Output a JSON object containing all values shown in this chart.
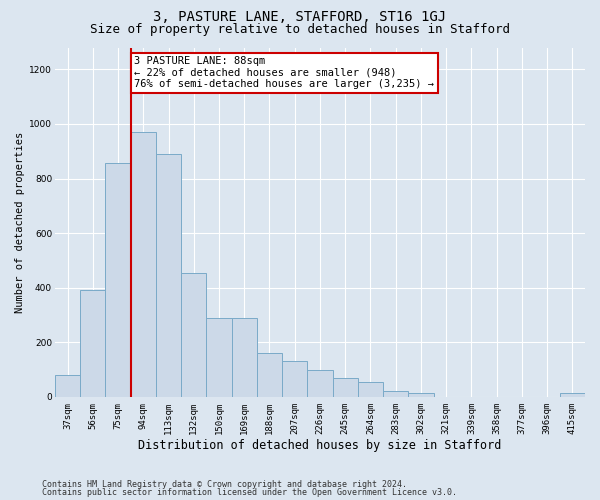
{
  "title": "3, PASTURE LANE, STAFFORD, ST16 1GJ",
  "subtitle": "Size of property relative to detached houses in Stafford",
  "xlabel": "Distribution of detached houses by size in Stafford",
  "ylabel": "Number of detached properties",
  "categories": [
    "37sqm",
    "56sqm",
    "75sqm",
    "94sqm",
    "113sqm",
    "132sqm",
    "150sqm",
    "169sqm",
    "188sqm",
    "207sqm",
    "226sqm",
    "245sqm",
    "264sqm",
    "283sqm",
    "302sqm",
    "321sqm",
    "339sqm",
    "358sqm",
    "377sqm",
    "396sqm",
    "415sqm"
  ],
  "values": [
    80,
    390,
    855,
    970,
    890,
    455,
    290,
    290,
    160,
    130,
    100,
    70,
    55,
    20,
    15,
    0,
    0,
    0,
    0,
    0,
    15
  ],
  "bar_color": "#ccd9e8",
  "bar_edge_color": "#7aaac8",
  "vline_x": 2.5,
  "vline_color": "#cc0000",
  "annotation_text": "3 PASTURE LANE: 88sqm\n← 22% of detached houses are smaller (948)\n76% of semi-detached houses are larger (3,235) →",
  "annotation_box_color": "#ffffff",
  "annotation_box_edge": "#cc0000",
  "ylim": [
    0,
    1280
  ],
  "yticks": [
    0,
    200,
    400,
    600,
    800,
    1000,
    1200
  ],
  "background_color": "#dce6f0",
  "plot_bg_color": "#dce6f0",
  "footer_line1": "Contains HM Land Registry data © Crown copyright and database right 2024.",
  "footer_line2": "Contains public sector information licensed under the Open Government Licence v3.0.",
  "title_fontsize": 10,
  "subtitle_fontsize": 9,
  "xlabel_fontsize": 8.5,
  "ylabel_fontsize": 7.5,
  "tick_fontsize": 6.5,
  "annotation_fontsize": 7.5
}
